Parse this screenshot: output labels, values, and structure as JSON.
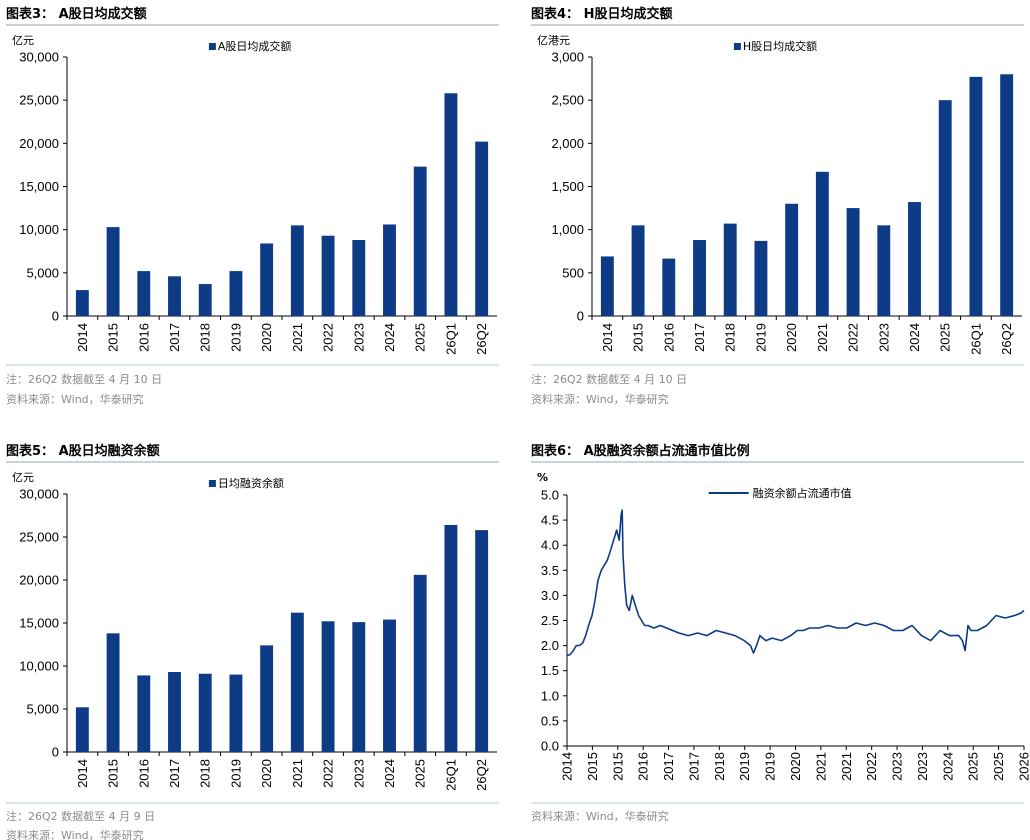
{
  "panels": [
    {
      "title": "图表3： A股日均成交额",
      "unit": "亿元",
      "notes": [
        "注：26Q2 数据截至 4 月 10 日",
        "资料来源：Wind，华泰研究"
      ]
    },
    {
      "title": "图表4： H股日均成交额",
      "unit": "亿港元",
      "notes": [
        "注：26Q2 数据截至 4 月 10 日",
        "资料来源：Wind，华泰研究"
      ]
    },
    {
      "title": "图表5： A股日均融资余额",
      "unit": "亿元",
      "notes": [
        "注：26Q2 数据截至 4 月 9 日",
        "资料来源：Wind，华泰研究"
      ]
    },
    {
      "title": "图表6： A股融资余额占流通市值比例",
      "unit": "%",
      "notes": [
        "资料来源：Wind，华泰研究"
      ]
    }
  ],
  "colors": {
    "bar": "#0d3b85",
    "line": "#0d3b85",
    "axis": "#000000",
    "divider": "#b8c4d6"
  },
  "chart_data": [
    {
      "type": "bar",
      "categories": [
        "2014",
        "2015",
        "2016",
        "2017",
        "2018",
        "2019",
        "2020",
        "2021",
        "2022",
        "2023",
        "2024",
        "2025",
        "26Q1",
        "26Q2"
      ],
      "series": [
        {
          "name": "A股日均成交额",
          "values": [
            3000,
            10300,
            5200,
            4600,
            3700,
            5200,
            8400,
            10500,
            9300,
            8800,
            10600,
            17300,
            25800,
            20200
          ]
        }
      ],
      "ylim": [
        0,
        30000
      ],
      "yticks": [
        0,
        5000,
        10000,
        15000,
        20000,
        25000,
        30000
      ],
      "ytick_labels": [
        "0",
        "5,000",
        "10,000",
        "15,000",
        "20,000",
        "25,000",
        "30,000"
      ],
      "legend": "top"
    },
    {
      "type": "bar",
      "categories": [
        "2014",
        "2015",
        "2016",
        "2017",
        "2018",
        "2019",
        "2020",
        "2021",
        "2022",
        "2023",
        "2024",
        "2025",
        "26Q1",
        "26Q2"
      ],
      "series": [
        {
          "name": "H股日均成交额",
          "values": [
            690,
            1050,
            665,
            880,
            1070,
            870,
            1300,
            1670,
            1250,
            1050,
            1320,
            2500,
            2770,
            2800
          ]
        }
      ],
      "ylim": [
        0,
        3000
      ],
      "yticks": [
        0,
        500,
        1000,
        1500,
        2000,
        2500,
        3000
      ],
      "ytick_labels": [
        "0",
        "500",
        "1,000",
        "1,500",
        "2,000",
        "2,500",
        "3,000"
      ],
      "legend": "top"
    },
    {
      "type": "bar",
      "categories": [
        "2014",
        "2015",
        "2016",
        "2017",
        "2018",
        "2019",
        "2020",
        "2021",
        "2022",
        "2023",
        "2024",
        "2025",
        "26Q1",
        "26Q2"
      ],
      "series": [
        {
          "name": "日均融资余额",
          "values": [
            5200,
            13800,
            8900,
            9300,
            9100,
            9000,
            12400,
            16200,
            15200,
            15100,
            15400,
            20600,
            26400,
            25800
          ]
        }
      ],
      "ylim": [
        0,
        30000
      ],
      "yticks": [
        0,
        5000,
        10000,
        15000,
        20000,
        25000,
        30000
      ],
      "ytick_labels": [
        "0",
        "5,000",
        "10,000",
        "15,000",
        "20,000",
        "25,000",
        "30,000"
      ],
      "legend": "top"
    },
    {
      "type": "line",
      "x_tick_labels": [
        "2014",
        "2015",
        "2015",
        "2016",
        "2017",
        "2017",
        "2018",
        "2019",
        "2019",
        "2020",
        "2021",
        "2021",
        "2022",
        "2023",
        "2023",
        "2024",
        "2025",
        "2025",
        "2026"
      ],
      "series": [
        {
          "name": "融资余额占流通市值",
          "x": [
            2014.0,
            2014.08,
            2014.17,
            2014.25,
            2014.33,
            2014.42,
            2014.5,
            2014.58,
            2014.67,
            2014.75,
            2014.83,
            2014.92,
            2015.0,
            2015.08,
            2015.17,
            2015.25,
            2015.33,
            2015.4,
            2015.45,
            2015.48,
            2015.5,
            2015.55,
            2015.6,
            2015.67,
            2015.75,
            2015.83,
            2015.92,
            2016.0,
            2016.08,
            2016.17,
            2016.33,
            2016.5,
            2016.67,
            2016.83,
            2017.0,
            2017.25,
            2017.5,
            2017.75,
            2018.0,
            2018.25,
            2018.5,
            2018.75,
            2018.92,
            2019.0,
            2019.08,
            2019.17,
            2019.33,
            2019.5,
            2019.75,
            2020.0,
            2020.17,
            2020.33,
            2020.5,
            2020.75,
            2021.0,
            2021.25,
            2021.5,
            2021.75,
            2022.0,
            2022.25,
            2022.5,
            2022.75,
            2023.0,
            2023.25,
            2023.5,
            2023.75,
            2024.0,
            2024.25,
            2024.5,
            2024.6,
            2024.67,
            2024.75,
            2024.83,
            2025.0,
            2025.25,
            2025.5,
            2025.75,
            2026.0,
            2026.17,
            2026.25
          ],
          "values": [
            1.8,
            1.82,
            1.9,
            2.0,
            2.0,
            2.05,
            2.2,
            2.4,
            2.6,
            2.9,
            3.3,
            3.5,
            3.6,
            3.7,
            3.9,
            4.1,
            4.3,
            4.1,
            4.6,
            4.7,
            3.8,
            3.2,
            2.8,
            2.7,
            3.0,
            2.8,
            2.6,
            2.5,
            2.4,
            2.4,
            2.35,
            2.4,
            2.35,
            2.3,
            2.25,
            2.2,
            2.25,
            2.2,
            2.3,
            2.25,
            2.2,
            2.1,
            2.0,
            1.85,
            2.0,
            2.2,
            2.1,
            2.15,
            2.1,
            2.2,
            2.3,
            2.3,
            2.35,
            2.35,
            2.4,
            2.35,
            2.35,
            2.45,
            2.4,
            2.45,
            2.4,
            2.3,
            2.3,
            2.4,
            2.2,
            2.1,
            2.3,
            2.2,
            2.2,
            2.1,
            1.9,
            2.4,
            2.3,
            2.3,
            2.4,
            2.6,
            2.55,
            2.6,
            2.65,
            2.7
          ]
        }
      ],
      "ylim": [
        0,
        5
      ],
      "yticks": [
        0,
        0.5,
        1,
        1.5,
        2,
        2.5,
        3,
        3.5,
        4,
        4.5,
        5
      ],
      "ytick_labels": [
        "0.0",
        "0.5",
        "1.0",
        "1.5",
        "2.0",
        "2.5",
        "3.0",
        "3.5",
        "4.0",
        "4.5",
        "5.0"
      ],
      "xlim": [
        2014.0,
        2026.25
      ],
      "legend": "top"
    }
  ]
}
